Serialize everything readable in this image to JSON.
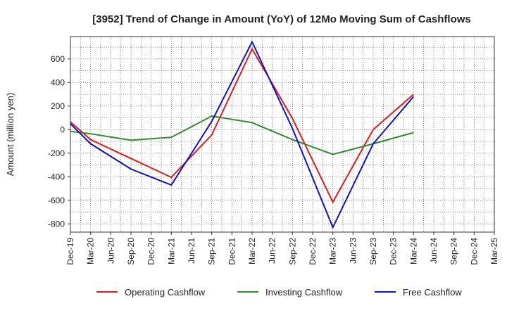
{
  "chart_data": {
    "type": "line",
    "title": "[3952]  Trend of Change in Amount (YoY) of 12Mo Moving Sum of Cashflows",
    "xlabel": "",
    "ylabel": "Amount (million yen)",
    "ylim": [
      -870,
      790
    ],
    "yticks": [
      600,
      400,
      200,
      0,
      -200,
      -400,
      -600,
      -800
    ],
    "ytick_labels": [
      "600",
      "400",
      "200",
      "0",
      "-200",
      "-400",
      "-600",
      "-800"
    ],
    "categories": [
      "Dec-19",
      "Mar-20",
      "Jun-20",
      "Sep-20",
      "Dec-20",
      "Mar-21",
      "Jun-21",
      "Sep-21",
      "Dec-21",
      "Mar-22",
      "Jun-22",
      "Sep-22",
      "Dec-22",
      "Mar-23",
      "Jun-23",
      "Sep-23",
      "Dec-23",
      "Mar-24",
      "Jun-24",
      "Sep-24",
      "Dec-24",
      "Mar-25"
    ],
    "grid": true,
    "legend_position": "bottom",
    "series": [
      {
        "name": "Operating Cashflow",
        "color": "#e31a1c",
        "values": [
          65,
          -85,
          null,
          -245,
          null,
          -405,
          null,
          -45,
          null,
          685,
          null,
          95,
          null,
          -615,
          null,
          0,
          null,
          300,
          null,
          null,
          null,
          null
        ]
      },
      {
        "name": "Investing Cashflow",
        "color": "#2e8b2e",
        "values": [
          -15,
          -35,
          null,
          -90,
          null,
          -65,
          null,
          115,
          null,
          60,
          null,
          -85,
          null,
          -210,
          null,
          -120,
          null,
          -25,
          null,
          null,
          null,
          null
        ]
      },
      {
        "name": "Free Cashflow",
        "color": "#1010cc",
        "values": [
          50,
          -120,
          null,
          -335,
          null,
          -470,
          null,
          70,
          null,
          745,
          null,
          10,
          null,
          -830,
          null,
          -120,
          null,
          280,
          null,
          null,
          null,
          null
        ]
      }
    ]
  }
}
